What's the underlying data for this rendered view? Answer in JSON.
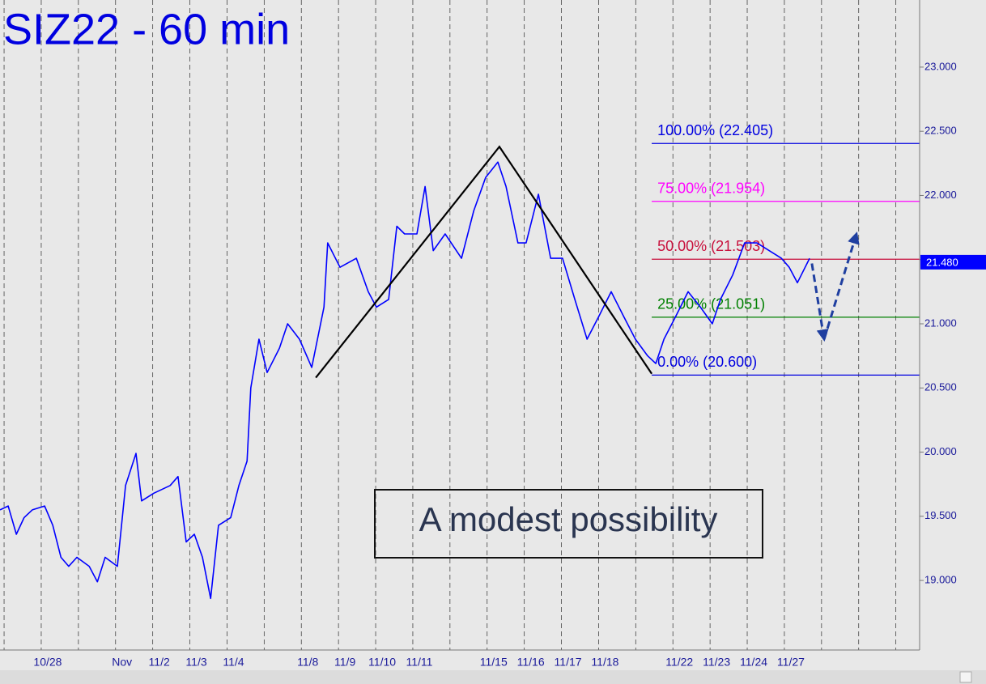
{
  "chart_data": {
    "type": "line",
    "title": "SIZ22 - 60 min",
    "categories": [
      null,
      "10/28",
      null,
      "Nov",
      "11/2",
      "11/3",
      "11/4",
      null,
      "11/8",
      "11/9",
      "11/10",
      "11/11",
      null,
      "11/15",
      "11/16",
      "11/17",
      "11/18",
      null,
      "11/22",
      "11/23",
      "11/24",
      "11/27",
      null,
      null,
      null
    ],
    "xlim": [
      -0.11,
      24.64
    ],
    "ylim": [
      18.458,
      23.523
    ],
    "yticks": [
      {
        "value": 23,
        "label": "23.000"
      },
      {
        "value": 22.5,
        "label": "22.500"
      },
      {
        "value": 22,
        "label": "22.000"
      },
      {
        "value": 21.5,
        "label": "21.500"
      },
      {
        "value": 21,
        "label": "21.000"
      },
      {
        "value": 20.5,
        "label": "20.500"
      },
      {
        "value": 20,
        "label": "20.000"
      },
      {
        "value": 19.5,
        "label": "19.500"
      },
      {
        "value": 19,
        "label": "19.000"
      }
    ],
    "series": [
      {
        "color": "#0000ff",
        "x": [
          -0.11,
          0.11,
          0.33,
          0.54,
          0.76,
          1.09,
          1.31,
          1.53,
          1.74,
          1.96,
          2.29,
          2.51,
          2.72,
          3.05,
          3.27,
          3.55,
          3.7,
          4.03,
          4.47,
          4.68,
          4.9,
          5.12,
          5.34,
          5.56,
          5.77,
          6.1,
          6.32,
          6.54,
          6.64,
          6.86,
          7.08,
          7.41,
          7.63,
          7.95,
          8.28,
          8.61,
          8.71,
          9.04,
          9.48,
          9.8,
          10.02,
          10.35,
          10.57,
          10.78,
          11.11,
          11.33,
          11.55,
          11.87,
          12.31,
          12.64,
          12.96,
          13.29,
          13.51,
          13.83,
          14.05,
          14.38,
          14.71,
          15.03,
          15.36,
          15.69,
          16.01,
          16.34,
          16.67,
          16.99,
          17.32,
          17.54,
          17.76,
          18.08,
          18.41,
          18.74,
          19.06,
          19.28,
          19.61,
          19.93,
          20.26,
          20.59,
          20.92,
          21.13,
          21.35,
          21.68
        ],
        "values": [
          19.55,
          19.58,
          19.36,
          19.49,
          19.55,
          19.58,
          19.43,
          19.18,
          19.11,
          19.18,
          19.11,
          18.99,
          19.18,
          19.11,
          19.74,
          19.99,
          19.62,
          19.68,
          19.74,
          19.81,
          19.3,
          19.36,
          19.18,
          18.86,
          19.43,
          19.49,
          19.74,
          19.93,
          20.5,
          20.88,
          20.62,
          20.81,
          21.0,
          20.88,
          20.66,
          21.13,
          21.63,
          21.44,
          21.51,
          21.25,
          21.13,
          21.19,
          21.76,
          21.7,
          21.7,
          22.07,
          21.57,
          21.7,
          21.51,
          21.88,
          22.14,
          22.26,
          22.07,
          21.63,
          21.63,
          22.01,
          21.51,
          21.51,
          21.19,
          20.88,
          21.06,
          21.25,
          21.06,
          20.88,
          20.75,
          20.69,
          20.88,
          21.06,
          21.25,
          21.13,
          21.0,
          21.19,
          21.38,
          21.63,
          21.63,
          21.57,
          21.51,
          21.44,
          21.32,
          21.51
        ]
      }
    ],
    "pattern": {
      "color": "#000000",
      "x": [
        8.39,
        13.33,
        17.43
      ],
      "values": [
        20.58,
        22.38,
        20.61
      ]
    },
    "projection": {
      "color": "#1f3fa0",
      "x": [
        21.74,
        22.07,
        22.94
      ],
      "values": [
        21.47,
        20.88,
        21.7
      ]
    },
    "levels_start": 17.43,
    "levels": [
      {
        "label": "100.00% (22.405)",
        "value": 22.405,
        "color": "#0000e0"
      },
      {
        "label": "75.00% (21.954)",
        "value": 21.954,
        "color": "#ff00ff"
      },
      {
        "label": "50.00% (21.503)",
        "value": 21.503,
        "color": "#c8103c"
      },
      {
        "label": "25.00% (21.051)",
        "value": 21.051,
        "color": "#008000"
      },
      {
        "label": "0.00% (20.600)",
        "value": 20.6,
        "color": "#0000e0"
      }
    ],
    "last_price": {
      "value": 21.48,
      "label": "21.480",
      "color": "#0000ff"
    },
    "annotation": "A modest possibility"
  }
}
